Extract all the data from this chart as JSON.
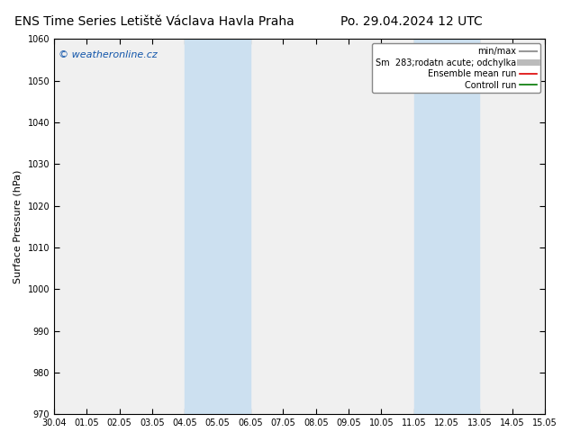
{
  "title_left": "ENS Time Series Letiště Václava Havla Praha",
  "title_right": "Po. 29.04.2024 12 UTC",
  "ylabel": "Surface Pressure (hPa)",
  "ylim": [
    970,
    1060
  ],
  "yticks": [
    970,
    980,
    990,
    1000,
    1010,
    1020,
    1030,
    1040,
    1050,
    1060
  ],
  "xtick_labels": [
    "30.04",
    "01.05",
    "02.05",
    "03.05",
    "04.05",
    "05.05",
    "06.05",
    "07.05",
    "08.05",
    "09.05",
    "10.05",
    "11.05",
    "12.05",
    "13.05",
    "14.05",
    "15.05"
  ],
  "shaded_bands": [
    {
      "xstart": 4.0,
      "xend": 6.0
    },
    {
      "xstart": 11.0,
      "xend": 13.0
    }
  ],
  "band_color": "#cce0f0",
  "band_alpha": 1.0,
  "background_color": "#ffffff",
  "plot_bg_color": "#f0f0f0",
  "watermark": "© weatheronline.cz",
  "watermark_color": "#1155aa",
  "watermark_fontsize": 8,
  "legend_entries": [
    {
      "label": "min/max",
      "color": "#999999",
      "lw": 1.5,
      "linestyle": "-"
    },
    {
      "label": "Sm  283;rodatn acute; odchylka",
      "color": "#bbbbbb",
      "lw": 5,
      "linestyle": "-"
    },
    {
      "label": "Ensemble mean run",
      "color": "#dd0000",
      "lw": 1.2,
      "linestyle": "-"
    },
    {
      "label": "Controll run",
      "color": "#007700",
      "lw": 1.2,
      "linestyle": "-"
    }
  ],
  "grid_color": "#aaaaaa",
  "title_fontsize": 10,
  "axis_fontsize": 8,
  "tick_fontsize": 7,
  "legend_fontsize": 7
}
